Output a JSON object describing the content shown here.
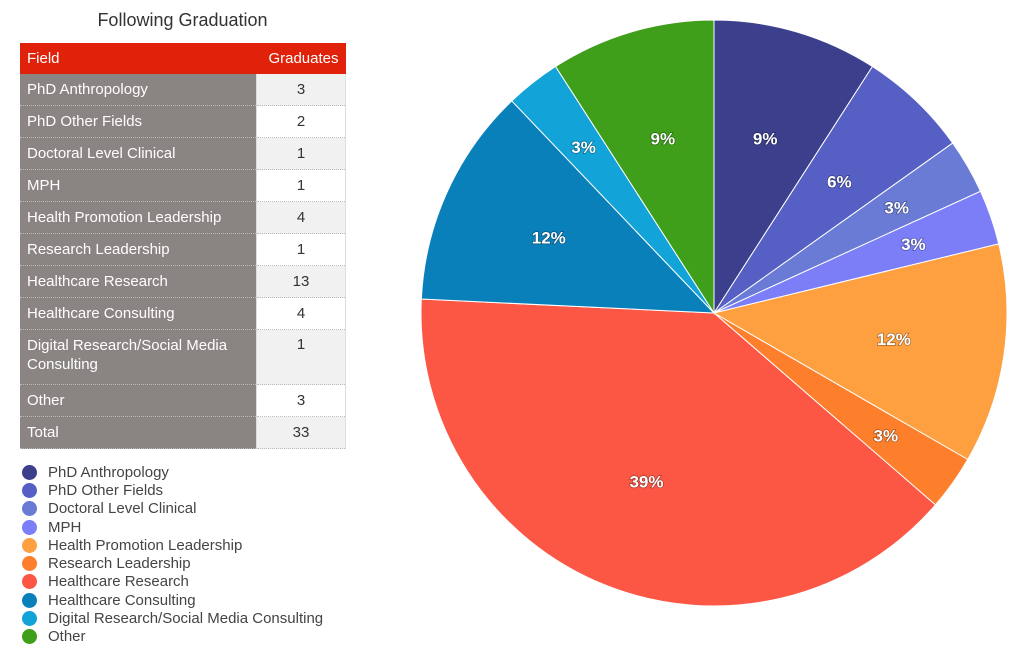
{
  "title": "Following Graduation",
  "table": {
    "headers": [
      "Field",
      "Graduates"
    ],
    "rows": [
      [
        "PhD Anthropology",
        "3"
      ],
      [
        "PhD Other Fields",
        "2"
      ],
      [
        "Doctoral Level Clinical",
        "1"
      ],
      [
        "MPH",
        "1"
      ],
      [
        "Health Promotion Leadership",
        "4"
      ],
      [
        "Research Leadership",
        "1"
      ],
      [
        "Healthcare Research",
        "13"
      ],
      [
        "Healthcare Consulting",
        "4"
      ],
      [
        "Digital Research/Social Media Consulting",
        "1"
      ],
      [
        "Other",
        "3"
      ],
      [
        "Total",
        "33"
      ]
    ]
  },
  "chart_data": {
    "type": "pie",
    "categories": [
      "PhD Anthropology",
      "PhD Other Fields",
      "Doctoral Level Clinical",
      "MPH",
      "Health Promotion Leadership",
      "Research Leadership",
      "Healthcare Research",
      "Healthcare Consulting",
      "Digital Research/Social Media Consulting",
      "Other"
    ],
    "values": [
      3,
      2,
      1,
      1,
      4,
      1,
      13,
      4,
      1,
      3
    ],
    "labels": [
      "9%",
      "6%",
      "3%",
      "3%",
      "12%",
      "3%",
      "39%",
      "12%",
      "3%",
      "9%"
    ],
    "colors": [
      "#3b3f8c",
      "#565fc4",
      "#6a7bd6",
      "#7b7ef6",
      "#fe9f40",
      "#fd7f2b",
      "#fc5645",
      "#0a80bb",
      "#12a3d9",
      "#3f9e1a"
    ],
    "legend": "bottom-left",
    "start": "top",
    "direction": "clockwise"
  }
}
